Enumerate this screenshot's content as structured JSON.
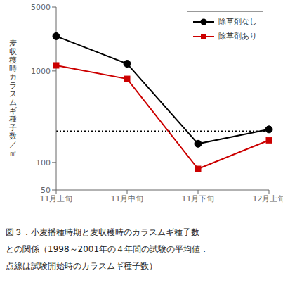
{
  "chart_data": {
    "type": "line",
    "categories": [
      "11月上旬",
      "11月中旬",
      "11月下旬",
      "12月上旬"
    ],
    "series": [
      {
        "name": "除草剤なし",
        "color": "#000000",
        "marker": "circle",
        "values": [
          2400,
          1200,
          160,
          230
        ]
      },
      {
        "name": "除草剤あり",
        "color": "#cc0000",
        "marker": "square",
        "values": [
          1150,
          820,
          85,
          175
        ]
      }
    ],
    "ylabel": "麦\n収\n穫\n時\nカ\nラ\nス\nム\nギ\n種\n子\n数\n／\n㎡",
    "ylim": [
      50,
      5000
    ],
    "yticks": [
      50,
      100,
      1000,
      5000
    ],
    "log": "y",
    "grid": false,
    "legend": "upper right",
    "reference_lines": [
      {
        "value": 220,
        "color": "#000000",
        "line_style": "dotted"
      }
    ],
    "caption": [
      "図３．小麦播種時期と麦収穫時のカラスムギ種子数",
      "との関係（1998～2001年の４年間の試験の平均値．",
      "点線は試験開始時のカラスムギ種子数）"
    ]
  }
}
